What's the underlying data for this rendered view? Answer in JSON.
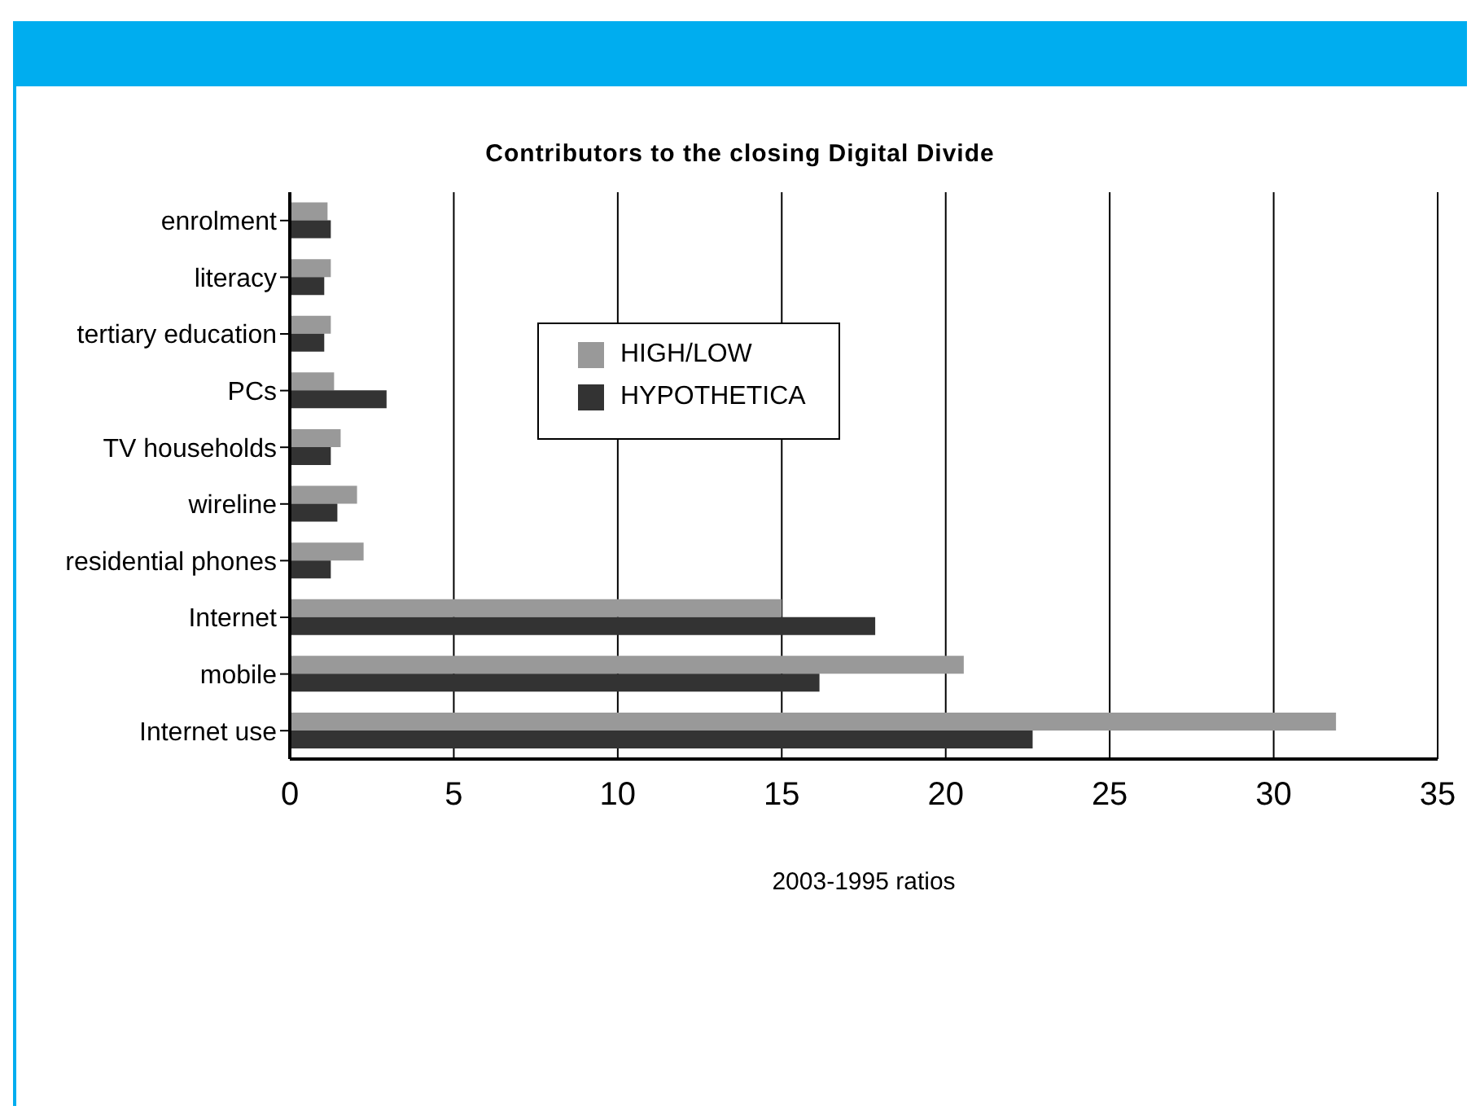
{
  "chart_data": {
    "type": "bar",
    "orientation": "horizontal",
    "title": "Contributors to the closing Digital Divide",
    "xlabel": "2003-1995 ratios",
    "categories": [
      "enrolment",
      "literacy",
      "tertiary education",
      "PCs",
      "TV households",
      "wireline",
      "residential phones",
      "Internet",
      "mobile",
      "Internet use"
    ],
    "series": [
      {
        "name": "HIGH/LOW",
        "color": "#999999",
        "values": [
          1.15,
          1.25,
          1.25,
          1.35,
          1.55,
          2.05,
          2.25,
          15.0,
          20.55,
          31.9
        ]
      },
      {
        "name": "HYPOTHETICA",
        "color": "#333333",
        "values": [
          1.25,
          1.05,
          1.05,
          2.95,
          1.25,
          1.45,
          1.25,
          17.85,
          16.15,
          22.65
        ]
      }
    ],
    "xlim": [
      0,
      35
    ],
    "xticks": [
      0,
      5,
      10,
      15,
      20,
      25,
      30,
      35
    ],
    "grid": "x",
    "legend": "top left"
  }
}
